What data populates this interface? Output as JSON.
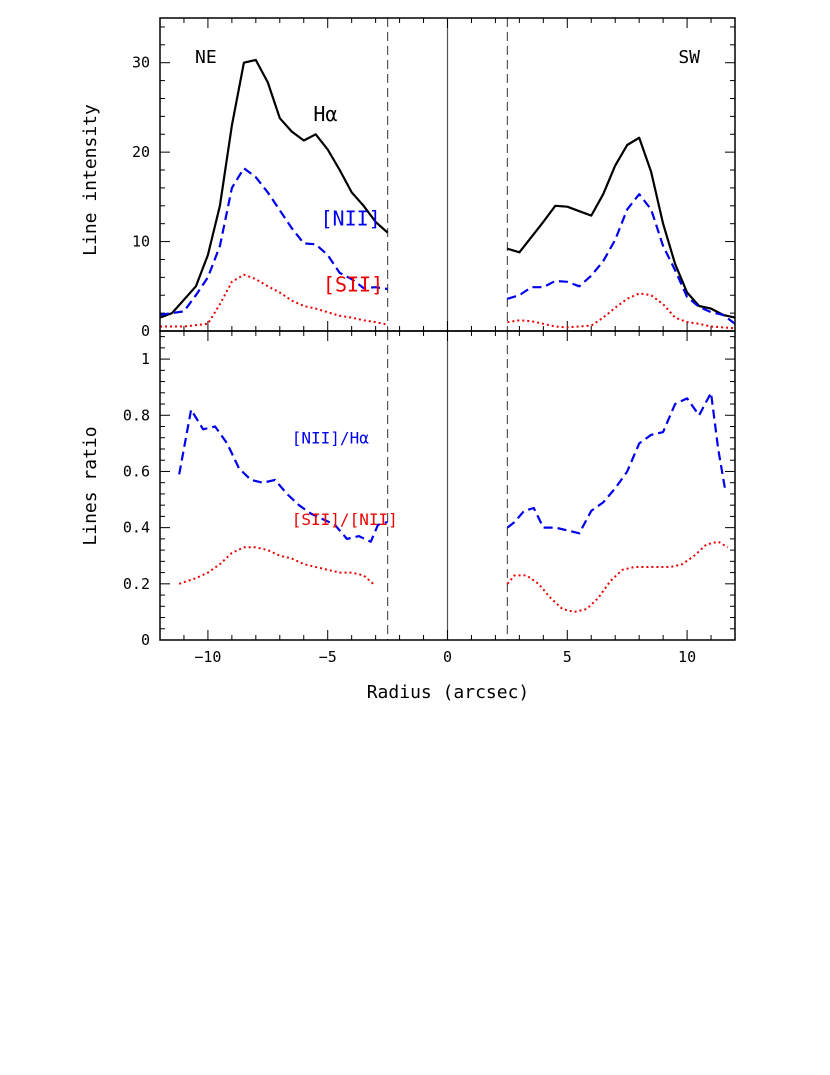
{
  "colors": {
    "halpha": "#000000",
    "nii": "#0000ee",
    "sii": "#ee0000",
    "frame": "#000000",
    "guide": "#555555"
  },
  "chart_data": [
    {
      "type": "line",
      "ylabel": "Line intensity",
      "xlim": [
        -12,
        12
      ],
      "ylim": [
        0,
        35
      ],
      "yticks": [
        0,
        10,
        20,
        30
      ],
      "region_labels": {
        "left": "NE",
        "right": "SW"
      },
      "vertical_lines": {
        "center": 0,
        "dashed": [
          -2.5,
          2.5
        ]
      },
      "series": [
        {
          "name": "Hα",
          "color": "#000000",
          "style": "solid",
          "segments": [
            [
              [
                -12,
                1.5
              ],
              [
                -11.5,
                2
              ],
              [
                -11,
                3.5
              ],
              [
                -10.5,
                5
              ],
              [
                -10,
                8.5
              ],
              [
                -9.5,
                14
              ],
              [
                -9,
                23
              ],
              [
                -8.5,
                30
              ],
              [
                -8,
                30.3
              ],
              [
                -7.5,
                27.8
              ],
              [
                -7,
                23.8
              ],
              [
                -6.5,
                22.3
              ],
              [
                -6,
                21.3
              ],
              [
                -5.5,
                22
              ],
              [
                -5,
                20.3
              ],
              [
                -4.5,
                18
              ],
              [
                -4,
                15.5
              ],
              [
                -3.5,
                14
              ],
              [
                -3,
                12.2
              ],
              [
                -2.5,
                11
              ]
            ],
            [
              [
                2.5,
                9.2
              ],
              [
                3,
                8.8
              ],
              [
                3.5,
                10.5
              ],
              [
                4,
                12.2
              ],
              [
                4.5,
                14
              ],
              [
                5,
                13.9
              ],
              [
                5.5,
                13.4
              ],
              [
                6,
                12.9
              ],
              [
                6.5,
                15.3
              ],
              [
                7,
                18.5
              ],
              [
                7.5,
                20.8
              ],
              [
                8,
                21.6
              ],
              [
                8.5,
                17.8
              ],
              [
                9,
                12
              ],
              [
                9.5,
                7.5
              ],
              [
                10,
                4.3
              ],
              [
                10.5,
                2.8
              ],
              [
                11,
                2.5
              ],
              [
                11.5,
                1.8
              ],
              [
                12,
                1.5
              ]
            ]
          ]
        },
        {
          "name": "[NII]",
          "color": "#0000ee",
          "style": "dashed",
          "segments": [
            [
              [
                -12,
                1.8
              ],
              [
                -11.5,
                2
              ],
              [
                -11,
                2.2
              ],
              [
                -10.5,
                4
              ],
              [
                -10,
                6
              ],
              [
                -9.5,
                9.5
              ],
              [
                -9,
                16
              ],
              [
                -8.5,
                18.2
              ],
              [
                -8,
                17.2
              ],
              [
                -7.5,
                15.5
              ],
              [
                -7,
                13.5
              ],
              [
                -6.5,
                11.5
              ],
              [
                -6,
                9.8
              ],
              [
                -5.5,
                9.7
              ],
              [
                -5,
                8.5
              ],
              [
                -4.5,
                6.5
              ],
              [
                -4,
                5.8
              ],
              [
                -3.5,
                4.8
              ],
              [
                -3,
                4.9
              ],
              [
                -2.5,
                4.7
              ]
            ],
            [
              [
                2.5,
                3.6
              ],
              [
                3,
                4
              ],
              [
                3.5,
                4.9
              ],
              [
                4,
                4.9
              ],
              [
                4.5,
                5.6
              ],
              [
                5,
                5.5
              ],
              [
                5.5,
                5
              ],
              [
                6,
                6.2
              ],
              [
                6.5,
                7.8
              ],
              [
                7,
                10.2
              ],
              [
                7.5,
                13.6
              ],
              [
                8,
                15.3
              ],
              [
                8.5,
                13.6
              ],
              [
                9,
                9.5
              ],
              [
                9.5,
                6.8
              ],
              [
                10,
                3.8
              ],
              [
                10.5,
                2.7
              ],
              [
                11,
                2.1
              ],
              [
                11.5,
                1.8
              ],
              [
                12,
                0.8
              ]
            ]
          ]
        },
        {
          "name": "[SII]",
          "color": "#ee0000",
          "style": "dotted",
          "segments": [
            [
              [
                -12,
                0.5
              ],
              [
                -11,
                0.5
              ],
              [
                -10,
                0.8
              ],
              [
                -9.5,
                3
              ],
              [
                -9,
                5.5
              ],
              [
                -8.5,
                6.3
              ],
              [
                -8,
                5.8
              ],
              [
                -7.5,
                5
              ],
              [
                -7,
                4.3
              ],
              [
                -6.5,
                3.4
              ],
              [
                -6,
                2.8
              ],
              [
                -5.5,
                2.5
              ],
              [
                -5,
                2.1
              ],
              [
                -4.5,
                1.7
              ],
              [
                -4,
                1.5
              ],
              [
                -3.5,
                1.2
              ],
              [
                -3,
                1
              ],
              [
                -2.5,
                0.7
              ]
            ],
            [
              [
                2.5,
                1
              ],
              [
                3,
                1.2
              ],
              [
                3.5,
                1.1
              ],
              [
                4,
                0.8
              ],
              [
                4.5,
                0.5
              ],
              [
                5,
                0.4
              ],
              [
                5.5,
                0.5
              ],
              [
                6,
                0.6
              ],
              [
                6.5,
                1.5
              ],
              [
                7,
                2.6
              ],
              [
                7.5,
                3.6
              ],
              [
                8,
                4.2
              ],
              [
                8.5,
                4
              ],
              [
                9,
                3
              ],
              [
                9.5,
                1.5
              ],
              [
                10,
                1
              ],
              [
                10.5,
                0.8
              ],
              [
                11,
                0.5
              ],
              [
                12,
                0.3
              ]
            ]
          ]
        }
      ],
      "annotations": [
        {
          "text": "Hα",
          "x": -5.6,
          "y": 23.5,
          "color": "#000000"
        },
        {
          "text": "[NII]",
          "x": -5.3,
          "y": 11.8,
          "color": "#0000ee"
        },
        {
          "text": "[SII]",
          "x": -5.2,
          "y": 4.4,
          "color": "#ee0000"
        }
      ]
    },
    {
      "type": "line",
      "xlabel": "Radius (arcsec)",
      "ylabel": "Lines ratio",
      "xlim": [
        -12,
        12
      ],
      "ylim": [
        0,
        1.1
      ],
      "yticks": [
        0,
        0.2,
        0.4,
        0.6,
        0.8,
        1
      ],
      "ytick_labels": [
        "0",
        "0.2",
        "0.4",
        "0.6",
        "0.8",
        "1"
      ],
      "xticks": [
        -10,
        -5,
        0,
        5,
        10
      ],
      "xtick_labels": [
        "−10",
        "−5",
        "0",
        "5",
        "10"
      ],
      "vertical_lines": {
        "center": 0,
        "dashed": [
          -2.5,
          2.5
        ]
      },
      "series": [
        {
          "name": "[NII]/Hα",
          "color": "#0000ee",
          "style": "dashed",
          "segments": [
            [
              [
                -11.2,
                0.59
              ],
              [
                -10.7,
                0.82
              ],
              [
                -10.2,
                0.75
              ],
              [
                -9.7,
                0.76
              ],
              [
                -9.2,
                0.7
              ],
              [
                -8.7,
                0.61
              ],
              [
                -8.2,
                0.57
              ],
              [
                -7.7,
                0.56
              ],
              [
                -7.2,
                0.57
              ],
              [
                -6.7,
                0.52
              ],
              [
                -6.2,
                0.48
              ],
              [
                -5.7,
                0.45
              ],
              [
                -5.2,
                0.43
              ],
              [
                -4.7,
                0.41
              ],
              [
                -4.2,
                0.36
              ],
              [
                -3.7,
                0.37
              ],
              [
                -3.2,
                0.35
              ],
              [
                -2.9,
                0.41
              ],
              [
                -2.5,
                0.42
              ]
            ],
            [
              [
                2.5,
                0.4
              ],
              [
                2.8,
                0.42
              ],
              [
                3.2,
                0.46
              ],
              [
                3.6,
                0.47
              ],
              [
                4,
                0.4
              ],
              [
                4.5,
                0.4
              ],
              [
                5,
                0.39
              ],
              [
                5.5,
                0.38
              ],
              [
                6,
                0.46
              ],
              [
                6.5,
                0.49
              ],
              [
                7,
                0.54
              ],
              [
                7.5,
                0.6
              ],
              [
                8,
                0.7
              ],
              [
                8.5,
                0.73
              ],
              [
                9,
                0.74
              ],
              [
                9.5,
                0.84
              ],
              [
                10,
                0.86
              ],
              [
                10.5,
                0.8
              ],
              [
                11,
                0.88
              ],
              [
                11.3,
                0.68
              ],
              [
                11.6,
                0.53
              ]
            ]
          ]
        },
        {
          "name": "[SII]/[NII]",
          "color": "#ee0000",
          "style": "dotted",
          "segments": [
            [
              [
                -11.2,
                0.2
              ],
              [
                -10.5,
                0.22
              ],
              [
                -10,
                0.24
              ],
              [
                -9.5,
                0.27
              ],
              [
                -9,
                0.31
              ],
              [
                -8.5,
                0.33
              ],
              [
                -8,
                0.33
              ],
              [
                -7.5,
                0.32
              ],
              [
                -7,
                0.3
              ],
              [
                -6.5,
                0.29
              ],
              [
                -6,
                0.27
              ],
              [
                -5.5,
                0.26
              ],
              [
                -5,
                0.25
              ],
              [
                -4.5,
                0.24
              ],
              [
                -4,
                0.24
              ],
              [
                -3.5,
                0.23
              ],
              [
                -3.1,
                0.2
              ]
            ],
            [
              [
                2.5,
                0.2
              ],
              [
                2.8,
                0.23
              ],
              [
                3.3,
                0.23
              ],
              [
                3.8,
                0.2
              ],
              [
                4.3,
                0.15
              ],
              [
                4.8,
                0.11
              ],
              [
                5.3,
                0.1
              ],
              [
                5.8,
                0.11
              ],
              [
                6.3,
                0.15
              ],
              [
                6.8,
                0.21
              ],
              [
                7.3,
                0.25
              ],
              [
                7.8,
                0.26
              ],
              [
                8.3,
                0.26
              ],
              [
                8.8,
                0.26
              ],
              [
                9.3,
                0.26
              ],
              [
                9.8,
                0.27
              ],
              [
                10.3,
                0.3
              ],
              [
                10.8,
                0.34
              ],
              [
                11.3,
                0.35
              ],
              [
                11.7,
                0.33
              ]
            ]
          ]
        }
      ],
      "annotations": [
        {
          "text": "[NII]/Hα",
          "x": -6.5,
          "y": 0.7,
          "color": "#0000ee"
        },
        {
          "text": "[SII]/[NII]",
          "x": -6.5,
          "y": 0.41,
          "color": "#ee0000"
        }
      ]
    }
  ]
}
